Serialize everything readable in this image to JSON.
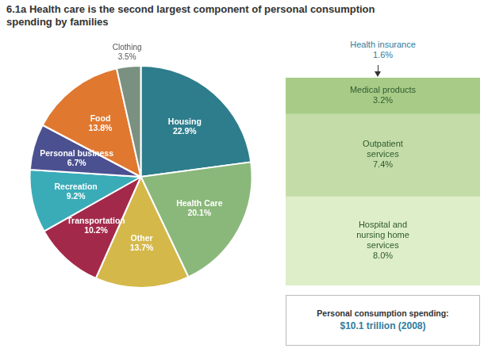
{
  "chart_data": [
    {
      "type": "pie",
      "title": "6.1a Health care is the second largest component of personal consumption\nspending by families",
      "categories": [
        "Housing",
        "Health Care",
        "Other",
        "Transportation",
        "Recreation",
        "Personal business",
        "Food",
        "Clothing"
      ],
      "values": [
        22.9,
        20.1,
        13.7,
        10.2,
        9.2,
        6.7,
        13.8,
        3.5
      ],
      "colors": [
        "#2e7d8c",
        "#8ab87a",
        "#d4b84a",
        "#a3294a",
        "#3aacb8",
        "#4a5090",
        "#e07830",
        "#7a9080"
      ],
      "data_labels": true,
      "value_labels": [
        "22.9%",
        "20.1%",
        "13.7%",
        "10.2%",
        "9.2%",
        "6.7%",
        "13.8%",
        "3.5%"
      ],
      "annotations": [
        "Personal consumption spending:",
        "$10.1 trillion (2008)"
      ]
    },
    {
      "type": "bar",
      "categories": [
        null
      ],
      "series": [
        {
          "name": "Medical products",
          "color": "#a8cc88",
          "values": [
            3.2
          ],
          "value_labels": [
            "3.2%"
          ]
        },
        {
          "name": "Outpatient\nservices",
          "color": "#c4dda8",
          "values": [
            7.4
          ],
          "value_labels": [
            "7.4%"
          ]
        },
        {
          "name": "Hospital and\nnursing home\nservices",
          "color": "#deeec8",
          "values": [
            8.0
          ],
          "value_labels": [
            "8.0%"
          ]
        }
      ],
      "stacked": true,
      "ylim": [
        0,
        18.6
      ],
      "tick_labels": false,
      "data_labels": true,
      "annotations": [
        "Health insurance\n1.6%"
      ]
    }
  ]
}
